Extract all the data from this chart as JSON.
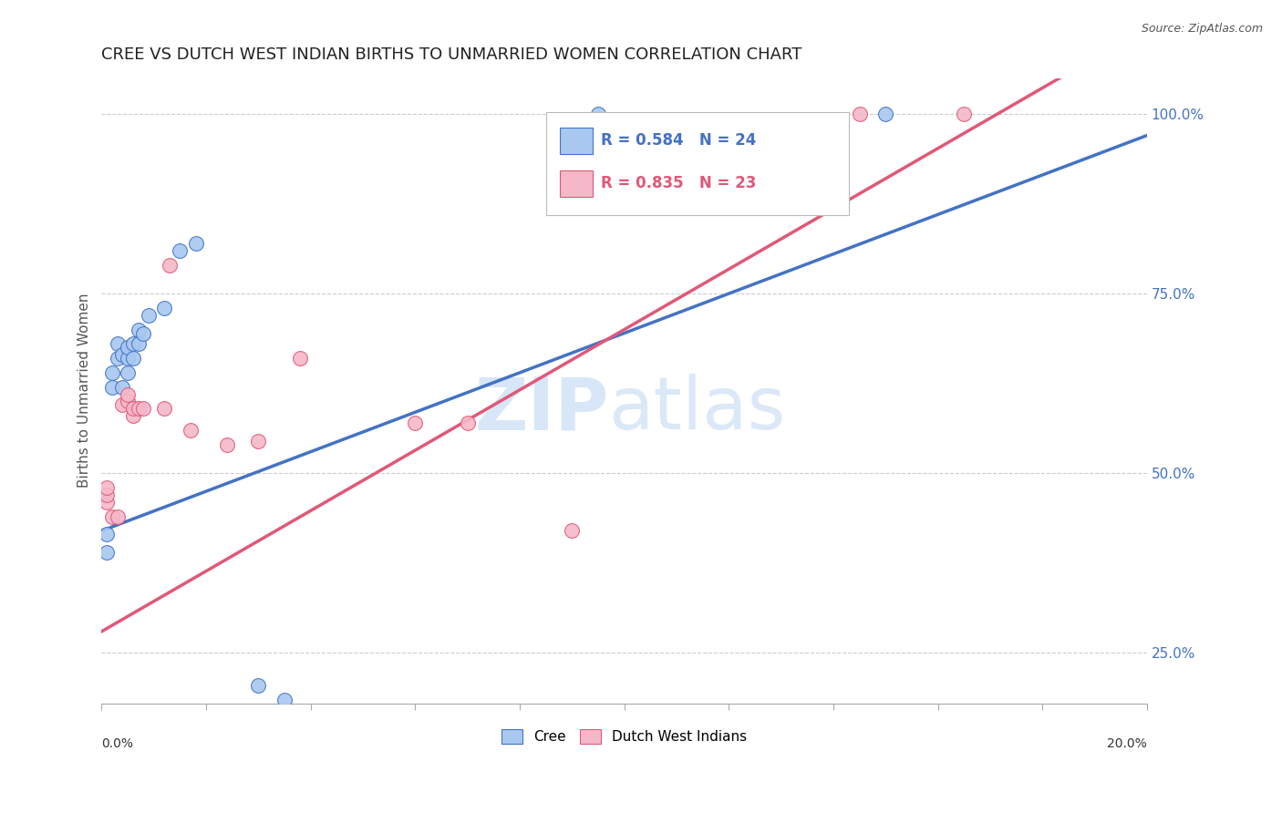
{
  "title": "CREE VS DUTCH WEST INDIAN BIRTHS TO UNMARRIED WOMEN CORRELATION CHART",
  "source": "Source: ZipAtlas.com",
  "ylabel": "Births to Unmarried Women",
  "legend_cree": "Cree",
  "legend_dwi": "Dutch West Indians",
  "R_cree": 0.584,
  "N_cree": 24,
  "R_dwi": 0.835,
  "N_dwi": 23,
  "color_cree": "#a8c8f0",
  "color_dwi": "#f5b8c8",
  "color_cree_line": "#4472c4",
  "color_dwi_line": "#e05878",
  "background": "#ffffff",
  "xlim": [
    0.0,
    0.2
  ],
  "ylim": [
    0.18,
    1.05
  ],
  "ytick_vals": [
    0.25,
    0.5,
    0.75,
    1.0
  ],
  "ytick_labels": [
    "25.0%",
    "50.0%",
    "75.0%",
    "100.0%"
  ],
  "cree_x": [
    0.001,
    0.001,
    0.002,
    0.002,
    0.003,
    0.003,
    0.004,
    0.004,
    0.005,
    0.005,
    0.005,
    0.006,
    0.006,
    0.007,
    0.007,
    0.008,
    0.009,
    0.012,
    0.015,
    0.018,
    0.095,
    0.15,
    0.03,
    0.035
  ],
  "cree_y": [
    0.415,
    0.39,
    0.62,
    0.64,
    0.66,
    0.68,
    0.62,
    0.665,
    0.64,
    0.66,
    0.675,
    0.66,
    0.68,
    0.68,
    0.7,
    0.695,
    0.72,
    0.73,
    0.81,
    0.82,
    1.0,
    1.0,
    0.205,
    0.185
  ],
  "dwi_x": [
    0.001,
    0.001,
    0.001,
    0.002,
    0.003,
    0.004,
    0.005,
    0.005,
    0.006,
    0.006,
    0.007,
    0.008,
    0.012,
    0.013,
    0.017,
    0.024,
    0.03,
    0.038,
    0.06,
    0.07,
    0.09,
    0.145,
    0.165
  ],
  "dwi_y": [
    0.46,
    0.47,
    0.48,
    0.44,
    0.44,
    0.595,
    0.6,
    0.61,
    0.58,
    0.59,
    0.59,
    0.59,
    0.59,
    0.79,
    0.56,
    0.54,
    0.545,
    0.66,
    0.57,
    0.57,
    0.42,
    1.0,
    1.0
  ]
}
